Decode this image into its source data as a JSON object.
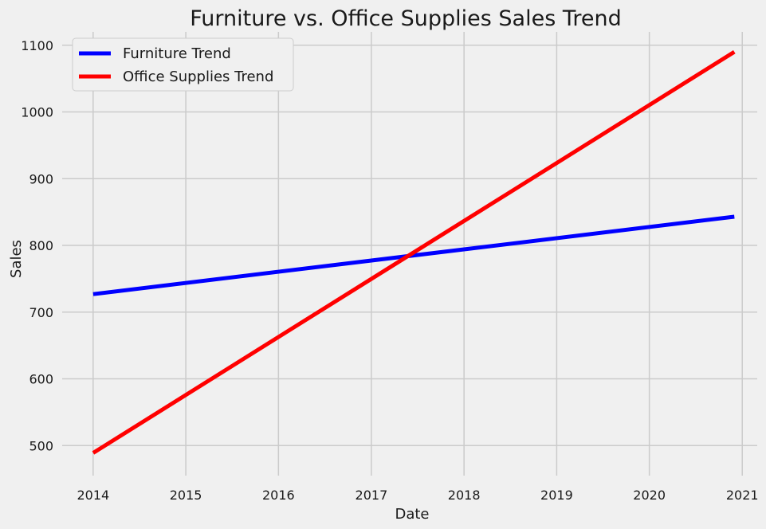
{
  "chart_data": {
    "type": "line",
    "title": "Furniture vs. Office Supplies Sales Trend",
    "xlabel": "Date",
    "ylabel": "Sales",
    "x_axis_type": "date",
    "xlim": [
      "2013-09-01",
      "2021-03-01"
    ],
    "ylim": [
      455,
      1120
    ],
    "x_ticks": [
      "2014",
      "2015",
      "2016",
      "2017",
      "2018",
      "2019",
      "2020",
      "2021"
    ],
    "y_ticks": [
      500,
      600,
      700,
      800,
      900,
      1000,
      1100
    ],
    "grid": true,
    "legend_position": "top-left",
    "series": [
      {
        "name": "Furniture Trend",
        "color": "#0000ff",
        "points": [
          {
            "x": "2014-01-01",
            "y": 727
          },
          {
            "x": "2020-12-01",
            "y": 843
          }
        ]
      },
      {
        "name": "Office Supplies Trend",
        "color": "#ff0000",
        "points": [
          {
            "x": "2014-01-01",
            "y": 489
          },
          {
            "x": "2020-12-01",
            "y": 1090
          }
        ]
      }
    ]
  }
}
